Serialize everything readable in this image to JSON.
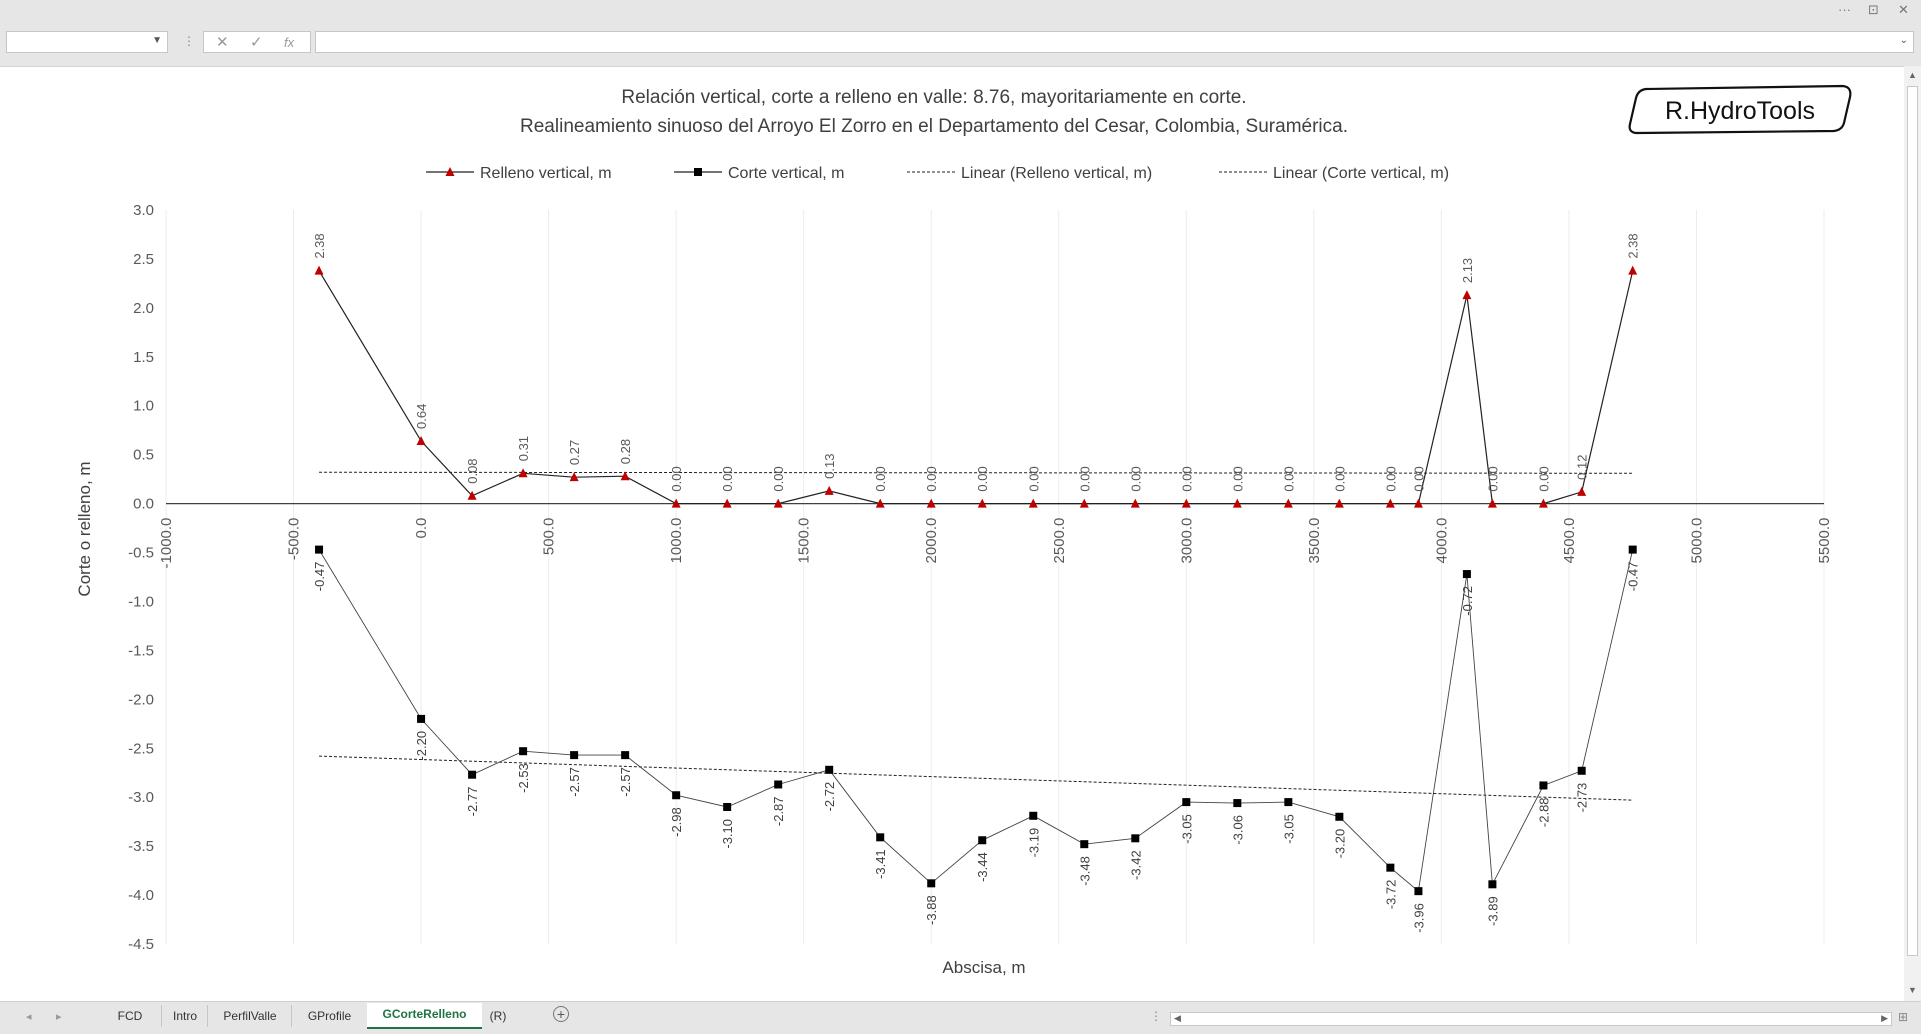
{
  "window": {
    "controls": {
      "more": "···",
      "restore": "⊡",
      "close": "✕"
    }
  },
  "formula_bar": {
    "name_box_value": "",
    "cancel_icon": "✕",
    "enter_icon": "✓",
    "fx_label": "fx",
    "formula_value": ""
  },
  "sheet_tabs": {
    "items": [
      {
        "label": "FCD",
        "active": false
      },
      {
        "label": "Intro",
        "active": false
      },
      {
        "label": "PerfilValle",
        "active": false
      },
      {
        "label": "GProfile",
        "active": false
      },
      {
        "label": "GCorteRelleno",
        "active": true
      },
      {
        "label": "(R)",
        "active": false
      }
    ],
    "add_label": "+"
  },
  "logo_text": "R.HydroTools",
  "chart_data": {
    "type": "line",
    "title": "Relación vertical, corte a relleno en valle: 8.76, mayoritariamente en corte.",
    "subtitle": "Realineamiento sinuoso del Arroyo El Zorro en el Departamento del Cesar, Colombia, Suramérica.",
    "xlabel": "Abscisa, m",
    "ylabel": "Corte o relleno, m",
    "xlim": [
      -1000,
      5500
    ],
    "ylim": [
      -4.5,
      3.0
    ],
    "x_ticks": [
      "-1000.0",
      "-500.0",
      "0.0",
      "500.0",
      "1000.0",
      "1500.0",
      "2000.0",
      "2500.0",
      "3000.0",
      "3500.0",
      "4000.0",
      "4500.0",
      "5000.0",
      "5500.0"
    ],
    "y_ticks": [
      "3.0",
      "2.5",
      "2.0",
      "1.5",
      "1.0",
      "0.5",
      "0.0",
      "-0.5",
      "-1.0",
      "-1.5",
      "-2.0",
      "-2.5",
      "-3.0",
      "-3.5",
      "-4.0",
      "-4.5"
    ],
    "grid": "vertical",
    "legend_position": "top",
    "legend": [
      "Relleno vertical, m",
      "Corte vertical, m",
      "Linear (Relleno vertical, m)",
      "Linear (Corte vertical, m)"
    ],
    "x": [
      -400,
      0,
      200,
      400,
      600,
      800,
      1000,
      1200,
      1400,
      1600,
      1800,
      2000,
      2200,
      2400,
      2600,
      2800,
      3000,
      3200,
      3400,
      3600,
      3800,
      3910,
      4100,
      4200,
      4400,
      4550,
      4750
    ],
    "series": [
      {
        "name": "Relleno vertical, m",
        "color": "#c00000",
        "marker": "triangle",
        "values": [
          2.38,
          0.64,
          0.08,
          0.31,
          0.27,
          0.28,
          0.0,
          0.0,
          0.0,
          0.13,
          0.0,
          0.0,
          0.0,
          0.0,
          0.0,
          0.0,
          0.0,
          0.0,
          0.0,
          0.0,
          0.0,
          0.0,
          2.13,
          0.0,
          0.0,
          0.12,
          2.38
        ],
        "labels": [
          "2.38",
          "0.64",
          "0.08",
          "0.31",
          "0.27",
          "0.28",
          "0.00",
          "0.00",
          "0.00",
          "0.13",
          "0.00",
          "0.00",
          "0.00",
          "0.00",
          "0.00",
          "0.00",
          "0.00",
          "0.00",
          "0.00",
          "0.00",
          "0.00",
          "0.00",
          "2.13",
          "0.00",
          "0.00",
          "0.12",
          "2.38"
        ]
      },
      {
        "name": "Corte vertical, m",
        "color": "#000000",
        "marker": "square",
        "values": [
          -0.47,
          -2.2,
          -2.77,
          -2.53,
          -2.57,
          -2.57,
          -2.98,
          -3.1,
          -2.87,
          -2.72,
          -3.41,
          -3.88,
          -3.44,
          -3.19,
          -3.48,
          -3.42,
          -3.05,
          -3.06,
          -3.05,
          -3.2,
          -3.72,
          -3.96,
          -0.72,
          -3.89,
          -2.88,
          -2.73,
          -0.47
        ],
        "labels": [
          "-0.47",
          "-2.20",
          "-2.77",
          "-2.53",
          "-2.57",
          "-2.57",
          "-2.98",
          "-3.10",
          "-2.87",
          "-2.72",
          "-3.41",
          "-3.88",
          "-3.44",
          "-3.19",
          "-3.48",
          "-3.42",
          "-3.05",
          "-3.06",
          "-3.05",
          "-3.20",
          "-3.72",
          "-3.96",
          "-0.72",
          "-3.89",
          "-2.88",
          "-2.73",
          "-0.47"
        ]
      }
    ],
    "trendlines": [
      {
        "name": "Linear (Relleno vertical, m)",
        "y_start": 0.32,
        "y_end": 0.31
      },
      {
        "name": "Linear (Corte vertical, m)",
        "y_start": -2.58,
        "y_end": -3.03
      }
    ]
  }
}
